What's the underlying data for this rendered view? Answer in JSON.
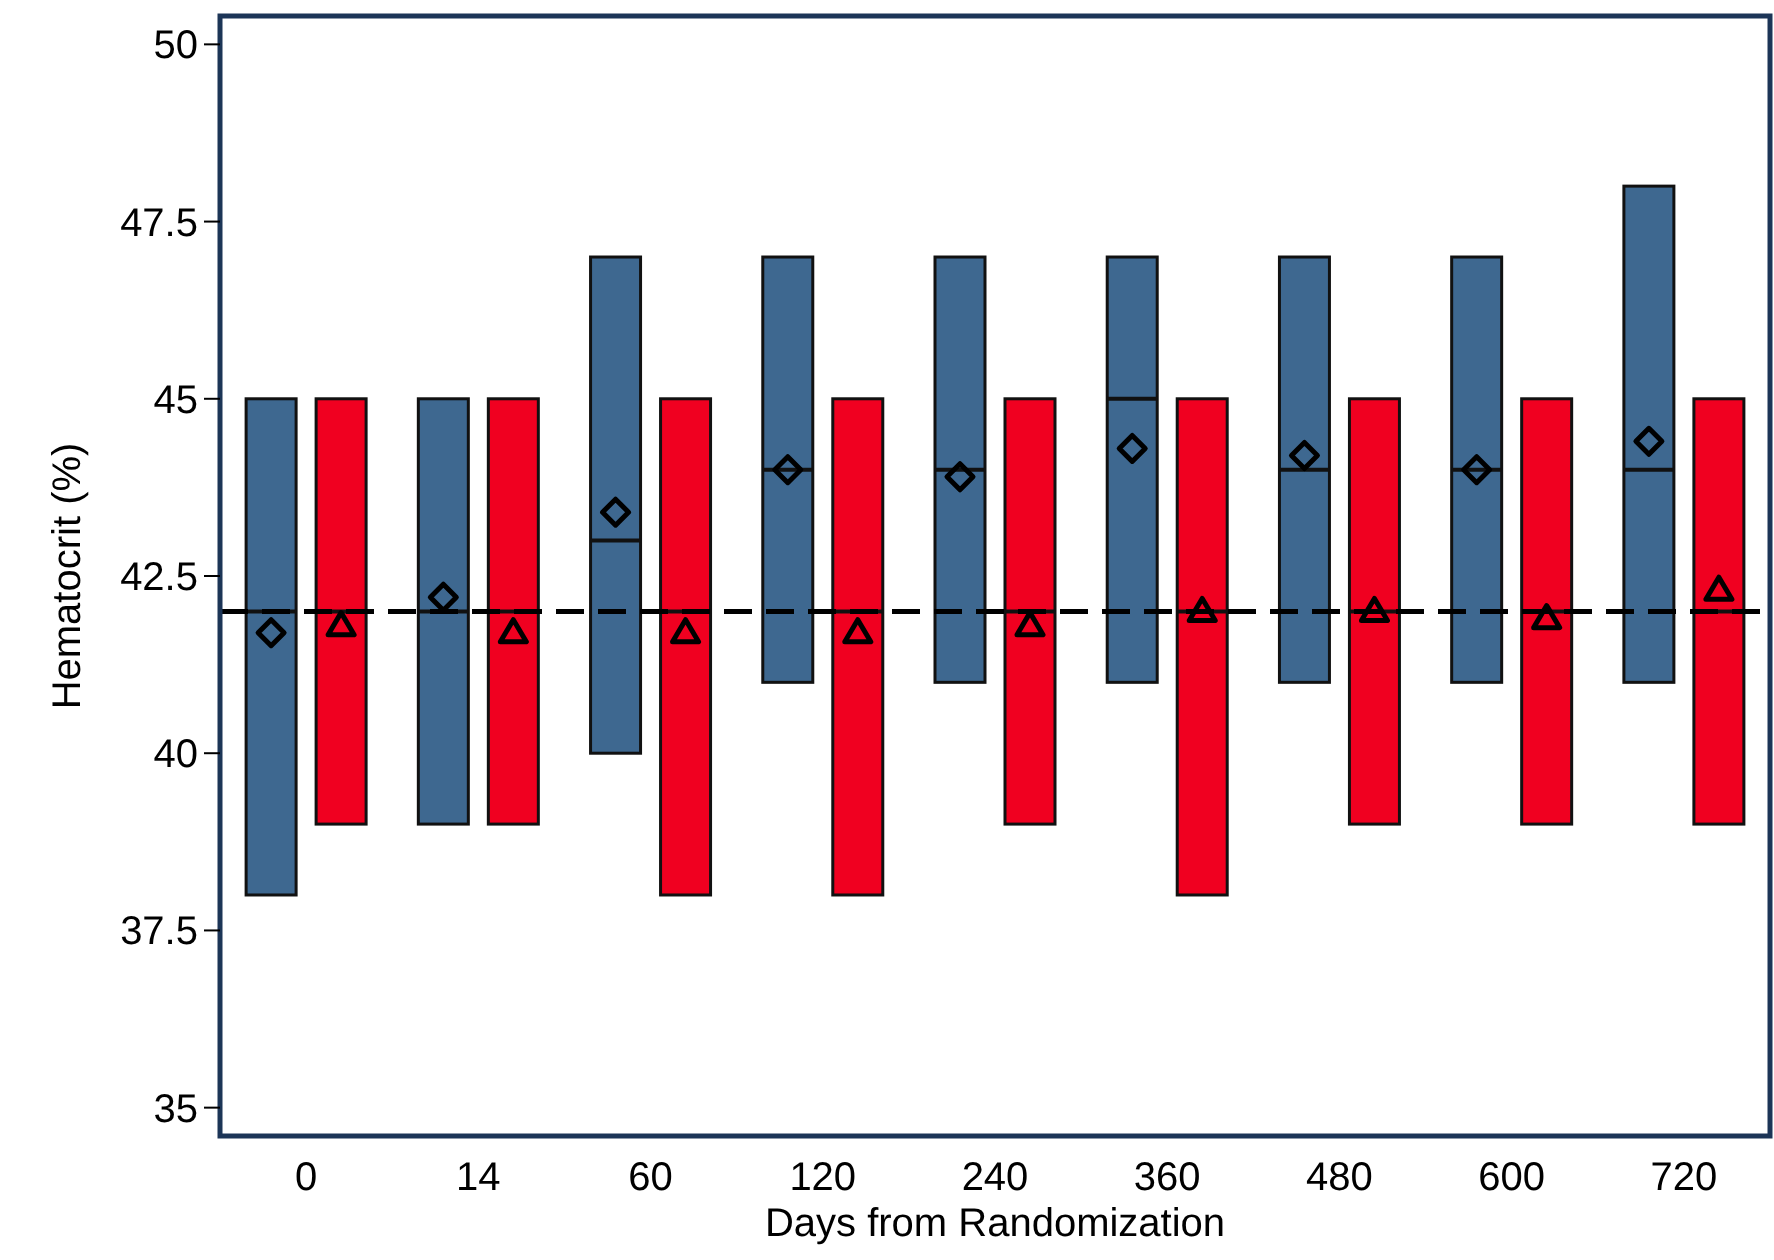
{
  "chart_data": {
    "type": "box",
    "xlabel": "Days from Randomization",
    "ylabel": "Hematocrit (%)",
    "categories": [
      "0",
      "14",
      "60",
      "120",
      "240",
      "360",
      "480",
      "600",
      "720"
    ],
    "ylim": [
      34.6,
      50.4
    ],
    "yticks": [
      35,
      37.5,
      40,
      42.5,
      45,
      47.5,
      50
    ],
    "grid": false,
    "ref_lines": [
      {
        "axis": "y",
        "value": 42,
        "line_style": "dashed",
        "color": "#000000"
      }
    ],
    "series": [
      {
        "color": "#3e6890",
        "marker": "diamond",
        "boxes": [
          {
            "low": 38,
            "q1": 38,
            "median": 42,
            "q3": 45,
            "high": 45,
            "mean": 41.7
          },
          {
            "low": 39,
            "q1": 39,
            "median": 42,
            "q3": 45,
            "high": 45,
            "mean": 42.2
          },
          {
            "low": 40,
            "q1": 40,
            "median": 43,
            "q3": 47,
            "high": 47,
            "mean": 43.4
          },
          {
            "low": 41,
            "q1": 41,
            "median": 44,
            "q3": 47,
            "high": 47,
            "mean": 44.0
          },
          {
            "low": 41,
            "q1": 41,
            "median": 44,
            "q3": 47,
            "high": 47,
            "mean": 43.9
          },
          {
            "low": 41,
            "q1": 41,
            "median": 45,
            "q3": 47,
            "high": 47,
            "mean": 44.3
          },
          {
            "low": 41,
            "q1": 41,
            "median": 44,
            "q3": 47,
            "high": 47,
            "mean": 44.2
          },
          {
            "low": 41,
            "q1": 41,
            "median": 44,
            "q3": 47,
            "high": 47,
            "mean": 44.0
          },
          {
            "low": 41,
            "q1": 41,
            "median": 44,
            "q3": 48,
            "high": 48,
            "mean": 44.4
          }
        ]
      },
      {
        "color": "#f00020",
        "marker": "triangle",
        "boxes": [
          {
            "low": 39,
            "q1": 39,
            "median": 42,
            "q3": 45,
            "high": 45,
            "mean": 41.8
          },
          {
            "low": 39,
            "q1": 39,
            "median": 42,
            "q3": 45,
            "high": 45,
            "mean": 41.7
          },
          {
            "low": 38,
            "q1": 38,
            "median": 42,
            "q3": 45,
            "high": 45,
            "mean": 41.7
          },
          {
            "low": 38,
            "q1": 38,
            "median": 42,
            "q3": 45,
            "high": 45,
            "mean": 41.7
          },
          {
            "low": 39,
            "q1": 39,
            "median": 42,
            "q3": 45,
            "high": 45,
            "mean": 41.8
          },
          {
            "low": 38,
            "q1": 38,
            "median": 42,
            "q3": 45,
            "high": 45,
            "mean": 42.0
          },
          {
            "low": 39,
            "q1": 39,
            "median": 42,
            "q3": 45,
            "high": 45,
            "mean": 42.0
          },
          {
            "low": 39,
            "q1": 39,
            "median": 42,
            "q3": 45,
            "high": 45,
            "mean": 41.9
          },
          {
            "low": 39,
            "q1": 39,
            "median": 42,
            "q3": 45,
            "high": 45,
            "mean": 42.3
          }
        ]
      }
    ]
  }
}
